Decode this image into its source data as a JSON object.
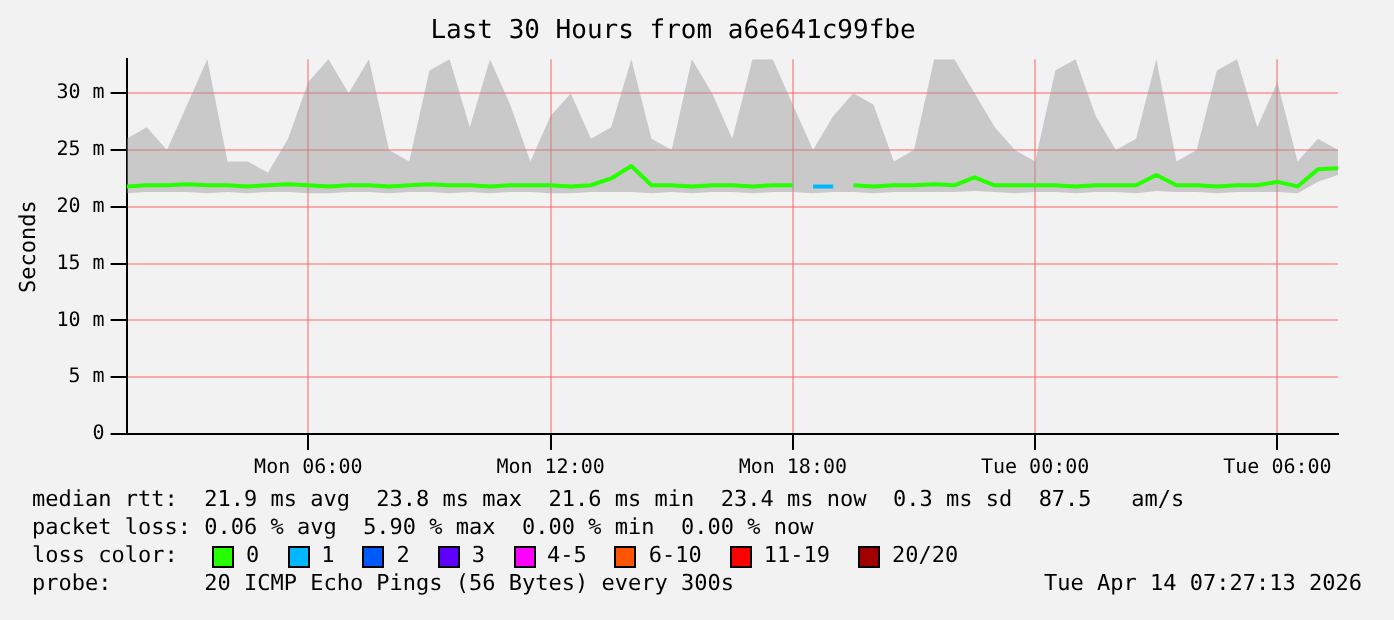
{
  "chart_data": {
    "type": "line",
    "title": "Last 30 Hours from a6e641c99fbe",
    "ylabel": "Seconds",
    "x": [
      "2026-04-13T01:30",
      "2026-04-13T02:00",
      "2026-04-13T02:30",
      "2026-04-13T03:00",
      "2026-04-13T03:30",
      "2026-04-13T04:00",
      "2026-04-13T04:30",
      "2026-04-13T05:00",
      "2026-04-13T05:30",
      "2026-04-13T06:00",
      "2026-04-13T06:30",
      "2026-04-13T07:00",
      "2026-04-13T07:30",
      "2026-04-13T08:00",
      "2026-04-13T08:30",
      "2026-04-13T09:00",
      "2026-04-13T09:30",
      "2026-04-13T10:00",
      "2026-04-13T10:30",
      "2026-04-13T11:00",
      "2026-04-13T11:30",
      "2026-04-13T12:00",
      "2026-04-13T12:30",
      "2026-04-13T13:00",
      "2026-04-13T13:30",
      "2026-04-13T14:00",
      "2026-04-13T14:30",
      "2026-04-13T15:00",
      "2026-04-13T15:30",
      "2026-04-13T16:00",
      "2026-04-13T16:30",
      "2026-04-13T17:00",
      "2026-04-13T17:30",
      "2026-04-13T18:00",
      "2026-04-13T18:30",
      "2026-04-13T19:00",
      "2026-04-13T19:30",
      "2026-04-13T20:00",
      "2026-04-13T20:30",
      "2026-04-13T21:00",
      "2026-04-13T21:30",
      "2026-04-13T22:00",
      "2026-04-13T22:30",
      "2026-04-13T23:00",
      "2026-04-13T23:30",
      "2026-04-14T00:00",
      "2026-04-14T00:30",
      "2026-04-14T01:00",
      "2026-04-14T01:30",
      "2026-04-14T02:00",
      "2026-04-14T02:30",
      "2026-04-14T03:00",
      "2026-04-14T03:30",
      "2026-04-14T04:00",
      "2026-04-14T04:30",
      "2026-04-14T05:00",
      "2026-04-14T05:30",
      "2026-04-14T06:00",
      "2026-04-14T06:30",
      "2026-04-14T07:00",
      "2026-04-14T07:30"
    ],
    "xlim": [
      "2026-04-13T01:30",
      "2026-04-14T07:30"
    ],
    "xticks": [
      {
        "value": "2026-04-13T06:00",
        "label": "Mon 06:00"
      },
      {
        "value": "2026-04-13T12:00",
        "label": "Mon 12:00"
      },
      {
        "value": "2026-04-13T18:00",
        "label": "Mon 18:00"
      },
      {
        "value": "2026-04-14T00:00",
        "label": "Tue 00:00"
      },
      {
        "value": "2026-04-14T06:00",
        "label": "Tue 06:00"
      }
    ],
    "ylim": [
      0,
      33
    ],
    "yticks": [
      {
        "value": 0,
        "label": "0"
      },
      {
        "value": 5,
        "label": "5 m"
      },
      {
        "value": 10,
        "label": "10 m"
      },
      {
        "value": 15,
        "label": "15 m"
      },
      {
        "value": 20,
        "label": "20 m"
      },
      {
        "value": 25,
        "label": "25 m"
      },
      {
        "value": 30,
        "label": "30 m"
      }
    ],
    "grid": true,
    "legend": "bottom",
    "legend_title": "loss color:",
    "marker": "none",
    "line_style": "solid",
    "series": [
      {
        "name": "0",
        "color": "#26ff00",
        "values": [
          21.8,
          21.9,
          21.9,
          22,
          21.9,
          21.9,
          21.8,
          21.9,
          22,
          21.9,
          21.8,
          21.9,
          21.9,
          21.8,
          21.9,
          22,
          21.9,
          21.9,
          21.8,
          21.9,
          21.9,
          21.9,
          21.8,
          21.9,
          22.5,
          23.6,
          21.9,
          21.9,
          21.8,
          21.9,
          21.9,
          21.8,
          21.9,
          21.9,
          null,
          null,
          21.9,
          21.8,
          21.9,
          21.9,
          22,
          21.9,
          22.6,
          21.9,
          21.9,
          21.9,
          21.9,
          21.8,
          21.9,
          21.9,
          21.9,
          22.8,
          21.9,
          21.9,
          21.8,
          21.9,
          21.9,
          22.2,
          21.8,
          23.3,
          23.4
        ],
        "lower": [
          21.2,
          21.3,
          21.3,
          21.3,
          21.2,
          21.3,
          21.2,
          21.3,
          21.3,
          21.2,
          21.2,
          21.3,
          21.3,
          21.2,
          21.3,
          21.3,
          21.2,
          21.3,
          21.2,
          21.3,
          21.3,
          21.2,
          21.2,
          21.3,
          21.3,
          21.3,
          21.2,
          21.3,
          21.2,
          21.3,
          21.3,
          21.2,
          21.3,
          21.3,
          21.2,
          21.3,
          21.3,
          21.2,
          21.3,
          21.3,
          21.3,
          21.3,
          21.4,
          21.3,
          21.2,
          21.3,
          21.3,
          21.2,
          21.3,
          21.3,
          21.2,
          21.4,
          21.3,
          21.3,
          21.2,
          21.3,
          21.3,
          21.3,
          21.2,
          22.2,
          22.8
        ],
        "upper": [
          26,
          27,
          25,
          29,
          33,
          24,
          24,
          23,
          26,
          31,
          33,
          30,
          33,
          25,
          24,
          32,
          33,
          27,
          33,
          29,
          24,
          28,
          30,
          26,
          27,
          33,
          26,
          25,
          33,
          30,
          26,
          33,
          33,
          29,
          25,
          28,
          30,
          29,
          24,
          25,
          33,
          33,
          30,
          27,
          25,
          24,
          32,
          33,
          28,
          25,
          26,
          33,
          24,
          25,
          32,
          33,
          27,
          31,
          24,
          26,
          25
        ]
      },
      {
        "name": "1",
        "color": "#00b8ff",
        "values": [
          null,
          null,
          null,
          null,
          null,
          null,
          null,
          null,
          null,
          null,
          null,
          null,
          null,
          null,
          null,
          null,
          null,
          null,
          null,
          null,
          null,
          null,
          null,
          null,
          null,
          null,
          null,
          null,
          null,
          null,
          null,
          null,
          null,
          null,
          21.8,
          21.8,
          null,
          null,
          null,
          null,
          null,
          null,
          null,
          null,
          null,
          null,
          null,
          null,
          null,
          null,
          null,
          null,
          null,
          null,
          null,
          null,
          null,
          null,
          null,
          null,
          null
        ]
      },
      {
        "name": "2",
        "color": "#0059ff",
        "values": [
          null,
          null,
          null,
          null,
          null,
          null,
          null,
          null,
          null,
          null,
          null,
          null,
          null,
          null,
          null,
          null,
          null,
          null,
          null,
          null,
          null,
          null,
          null,
          null,
          null,
          null,
          null,
          null,
          null,
          null,
          null,
          null,
          null,
          null,
          null,
          null,
          null,
          null,
          null,
          null,
          null,
          null,
          null,
          null,
          null,
          null,
          null,
          null,
          null,
          null,
          null,
          null,
          null,
          null,
          null,
          null,
          null,
          null,
          null,
          null,
          null
        ]
      },
      {
        "name": "3",
        "color": "#5e00ff",
        "values": [
          null,
          null,
          null,
          null,
          null,
          null,
          null,
          null,
          null,
          null,
          null,
          null,
          null,
          null,
          null,
          null,
          null,
          null,
          null,
          null,
          null,
          null,
          null,
          null,
          null,
          null,
          null,
          null,
          null,
          null,
          null,
          null,
          null,
          null,
          null,
          null,
          null,
          null,
          null,
          null,
          null,
          null,
          null,
          null,
          null,
          null,
          null,
          null,
          null,
          null,
          null,
          null,
          null,
          null,
          null,
          null,
          null,
          null,
          null,
          null,
          null
        ]
      },
      {
        "name": "4-5",
        "color": "#ff00ff",
        "values": [
          null,
          null,
          null,
          null,
          null,
          null,
          null,
          null,
          null,
          null,
          null,
          null,
          null,
          null,
          null,
          null,
          null,
          null,
          null,
          null,
          null,
          null,
          null,
          null,
          null,
          null,
          null,
          null,
          null,
          null,
          null,
          null,
          null,
          null,
          null,
          null,
          null,
          null,
          null,
          null,
          null,
          null,
          null,
          null,
          null,
          null,
          null,
          null,
          null,
          null,
          null,
          null,
          null,
          null,
          null,
          null,
          null,
          null,
          null,
          null,
          null
        ]
      },
      {
        "name": "6-10",
        "color": "#ff5500",
        "values": [
          null,
          null,
          null,
          null,
          null,
          null,
          null,
          null,
          null,
          null,
          null,
          null,
          null,
          null,
          null,
          null,
          null,
          null,
          null,
          null,
          null,
          null,
          null,
          null,
          null,
          null,
          null,
          null,
          null,
          null,
          null,
          null,
          null,
          null,
          null,
          null,
          null,
          null,
          null,
          null,
          null,
          null,
          null,
          null,
          null,
          null,
          null,
          null,
          null,
          null,
          null,
          null,
          null,
          null,
          null,
          null,
          null,
          null,
          null,
          null,
          null
        ]
      },
      {
        "name": "11-19",
        "color": "#ff0000",
        "values": [
          null,
          null,
          null,
          null,
          null,
          null,
          null,
          null,
          null,
          null,
          null,
          null,
          null,
          null,
          null,
          null,
          null,
          null,
          null,
          null,
          null,
          null,
          null,
          null,
          null,
          null,
          null,
          null,
          null,
          null,
          null,
          null,
          null,
          null,
          null,
          null,
          null,
          null,
          null,
          null,
          null,
          null,
          null,
          null,
          null,
          null,
          null,
          null,
          null,
          null,
          null,
          null,
          null,
          null,
          null,
          null,
          null,
          null,
          null,
          null,
          null
        ]
      },
      {
        "name": "20/20",
        "color": "#a10000",
        "values": [
          null,
          null,
          null,
          null,
          null,
          null,
          null,
          null,
          null,
          null,
          null,
          null,
          null,
          null,
          null,
          null,
          null,
          null,
          null,
          null,
          null,
          null,
          null,
          null,
          null,
          null,
          null,
          null,
          null,
          null,
          null,
          null,
          null,
          null,
          null,
          null,
          null,
          null,
          null,
          null,
          null,
          null,
          null,
          null,
          null,
          null,
          null,
          null,
          null,
          null,
          null,
          null,
          null,
          null,
          null,
          null,
          null,
          null,
          null,
          null,
          null
        ]
      }
    ],
    "annotations": [
      "median rtt:  21.9 ms avg  23.8 ms max  21.6 ms min  23.4 ms now  0.3 ms sd  87.5   am/s",
      "packet loss: 0.06 % avg  5.90 % max  0.00 % min  0.00 % now",
      "probe:       20 ICMP Echo Pings (56 Bytes) every 300s",
      "Tue Apr 14 07:27:13 2026"
    ]
  }
}
